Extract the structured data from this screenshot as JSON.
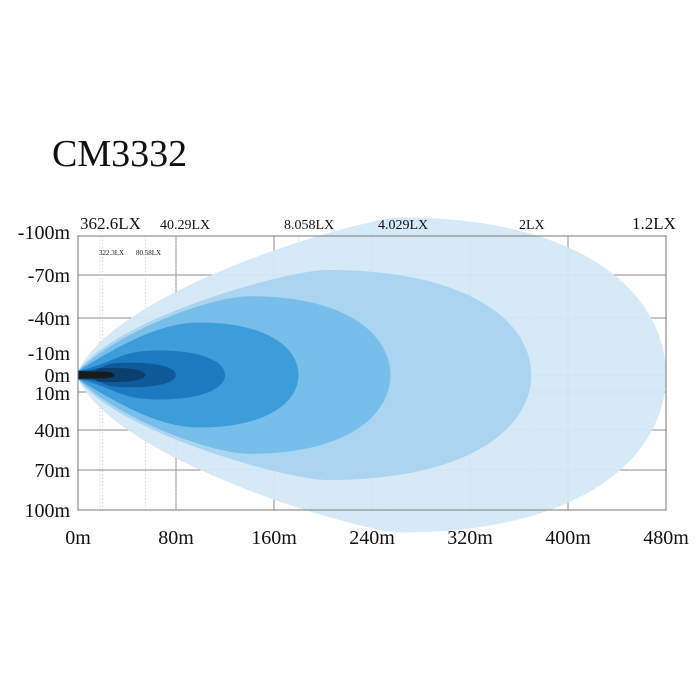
{
  "page": {
    "title": "CM3332"
  },
  "chart_data": {
    "type": "area",
    "title": "CM3332",
    "xlabel": "",
    "ylabel": "",
    "x_ticks": [
      "0m",
      "80m",
      "160m",
      "240m",
      "320m",
      "400m",
      "480m"
    ],
    "x_tick_values": [
      0,
      80,
      160,
      240,
      320,
      400,
      480
    ],
    "y_ticks": [
      "-100m",
      "-70m",
      "-40m",
      "-10m",
      "0m",
      "10m",
      "40m",
      "70m",
      "100m"
    ],
    "y_tick_values": [
      -100,
      -70,
      -40,
      -10,
      0,
      10,
      40,
      70,
      100
    ],
    "xlim": [
      0,
      480
    ],
    "ylim": [
      -100,
      100
    ],
    "grid": true,
    "lux_labels_top": [
      {
        "text": "362.6LX",
        "x": 20
      },
      {
        "text": "40.29LX",
        "x": 80
      },
      {
        "text": "8.058LX",
        "x": 180
      },
      {
        "text": "4.029LX",
        "x": 255
      },
      {
        "text": "2LX",
        "x": 370
      },
      {
        "text": "1.2LX",
        "x": 480
      }
    ],
    "lux_labels_small": [
      {
        "text": "322.3LX",
        "x": 18
      },
      {
        "text": "80.58LX",
        "x": 55
      }
    ],
    "series": [
      {
        "lux": "1.2LX",
        "reach": 480,
        "half_width": 90,
        "color": "#d3e8f6"
      },
      {
        "lux": "2LX",
        "reach": 370,
        "half_width": 60,
        "color": "#a9d3f0"
      },
      {
        "lux": "4.029LX",
        "reach": 255,
        "half_width": 45,
        "color": "#74bdea"
      },
      {
        "lux": "8.058LX",
        "reach": 180,
        "half_width": 30,
        "color": "#3a9bd9"
      },
      {
        "lux": "40.29LX",
        "reach": 120,
        "half_width": 14,
        "color": "#1b77bf"
      },
      {
        "lux": "80.58LX",
        "reach": 80,
        "half_width": 7,
        "color": "#0f5a98"
      },
      {
        "lux": "322.3LX",
        "reach": 55,
        "half_width": 4,
        "color": "#0b3e6e"
      },
      {
        "lux": "362.6LX",
        "reach": 30,
        "half_width": 2,
        "color": "#1a1a1a"
      }
    ]
  }
}
